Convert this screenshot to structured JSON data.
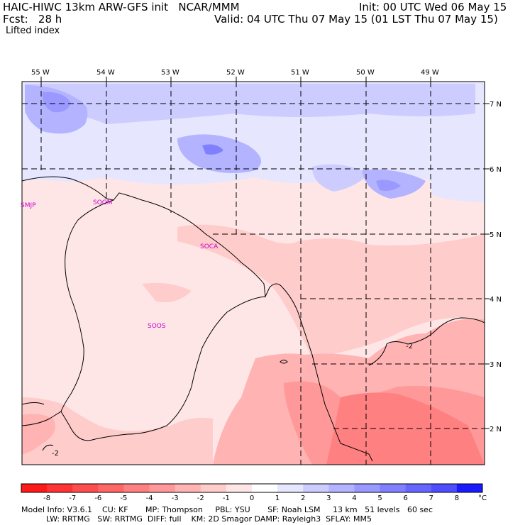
{
  "header": {
    "model_line": "HAIC-HIWC 13km ARW-GFS init   NCAR/MMM",
    "init_line": "Init: 00 UTC Wed 06 May 15",
    "fcst_line": "Fcst:   28 h",
    "valid_line": "Valid: 04 UTC Thu 07 May 15 (01 LST Thu 07 May 15)",
    "field_name": "Lifted index"
  },
  "map": {
    "lon_labels": [
      "55 W",
      "54 W",
      "53 W",
      "52 W",
      "51 W",
      "50 W",
      "49 W"
    ],
    "lat_labels": [
      "7 N",
      "6 N",
      "5 N",
      "4 N",
      "3 N",
      "2 N"
    ],
    "stations": [
      "SMJP",
      "SOGM",
      "SOCA",
      "SOOS"
    ],
    "contour_labels": [
      "-2",
      "-2"
    ],
    "station_color": "#cc00cc"
  },
  "colorbar": {
    "labels": [
      "-8",
      "-7",
      "-6",
      "-5",
      "-4",
      "-3",
      "-2",
      "-1",
      "0",
      "1",
      "2",
      "3",
      "4",
      "5",
      "6",
      "7",
      "8"
    ],
    "unit": "°C",
    "colors": [
      "#ff1a1a",
      "#ff3333",
      "#ff4d4d",
      "#ff6666",
      "#ff8080",
      "#ff9999",
      "#ffb3b3",
      "#ffcccc",
      "#ffe6e6",
      "#ffffff",
      "#e6e6ff",
      "#ccccff",
      "#b3b3ff",
      "#9999ff",
      "#8080ff",
      "#6666ff",
      "#4d4dff",
      "#1a1aff"
    ]
  },
  "footer": {
    "line1": "Model Info: V3.6.1    CU: KF       MP: Thompson     PBL: YSU       SF: Noah LSM     13 km   51 levels   60 sec",
    "line2": "          LW: RRTMG   SW: RRTMG  DIFF: full    KM: 2D Smagor DAMP: Rayleigh3  SFLAY: MM5"
  }
}
